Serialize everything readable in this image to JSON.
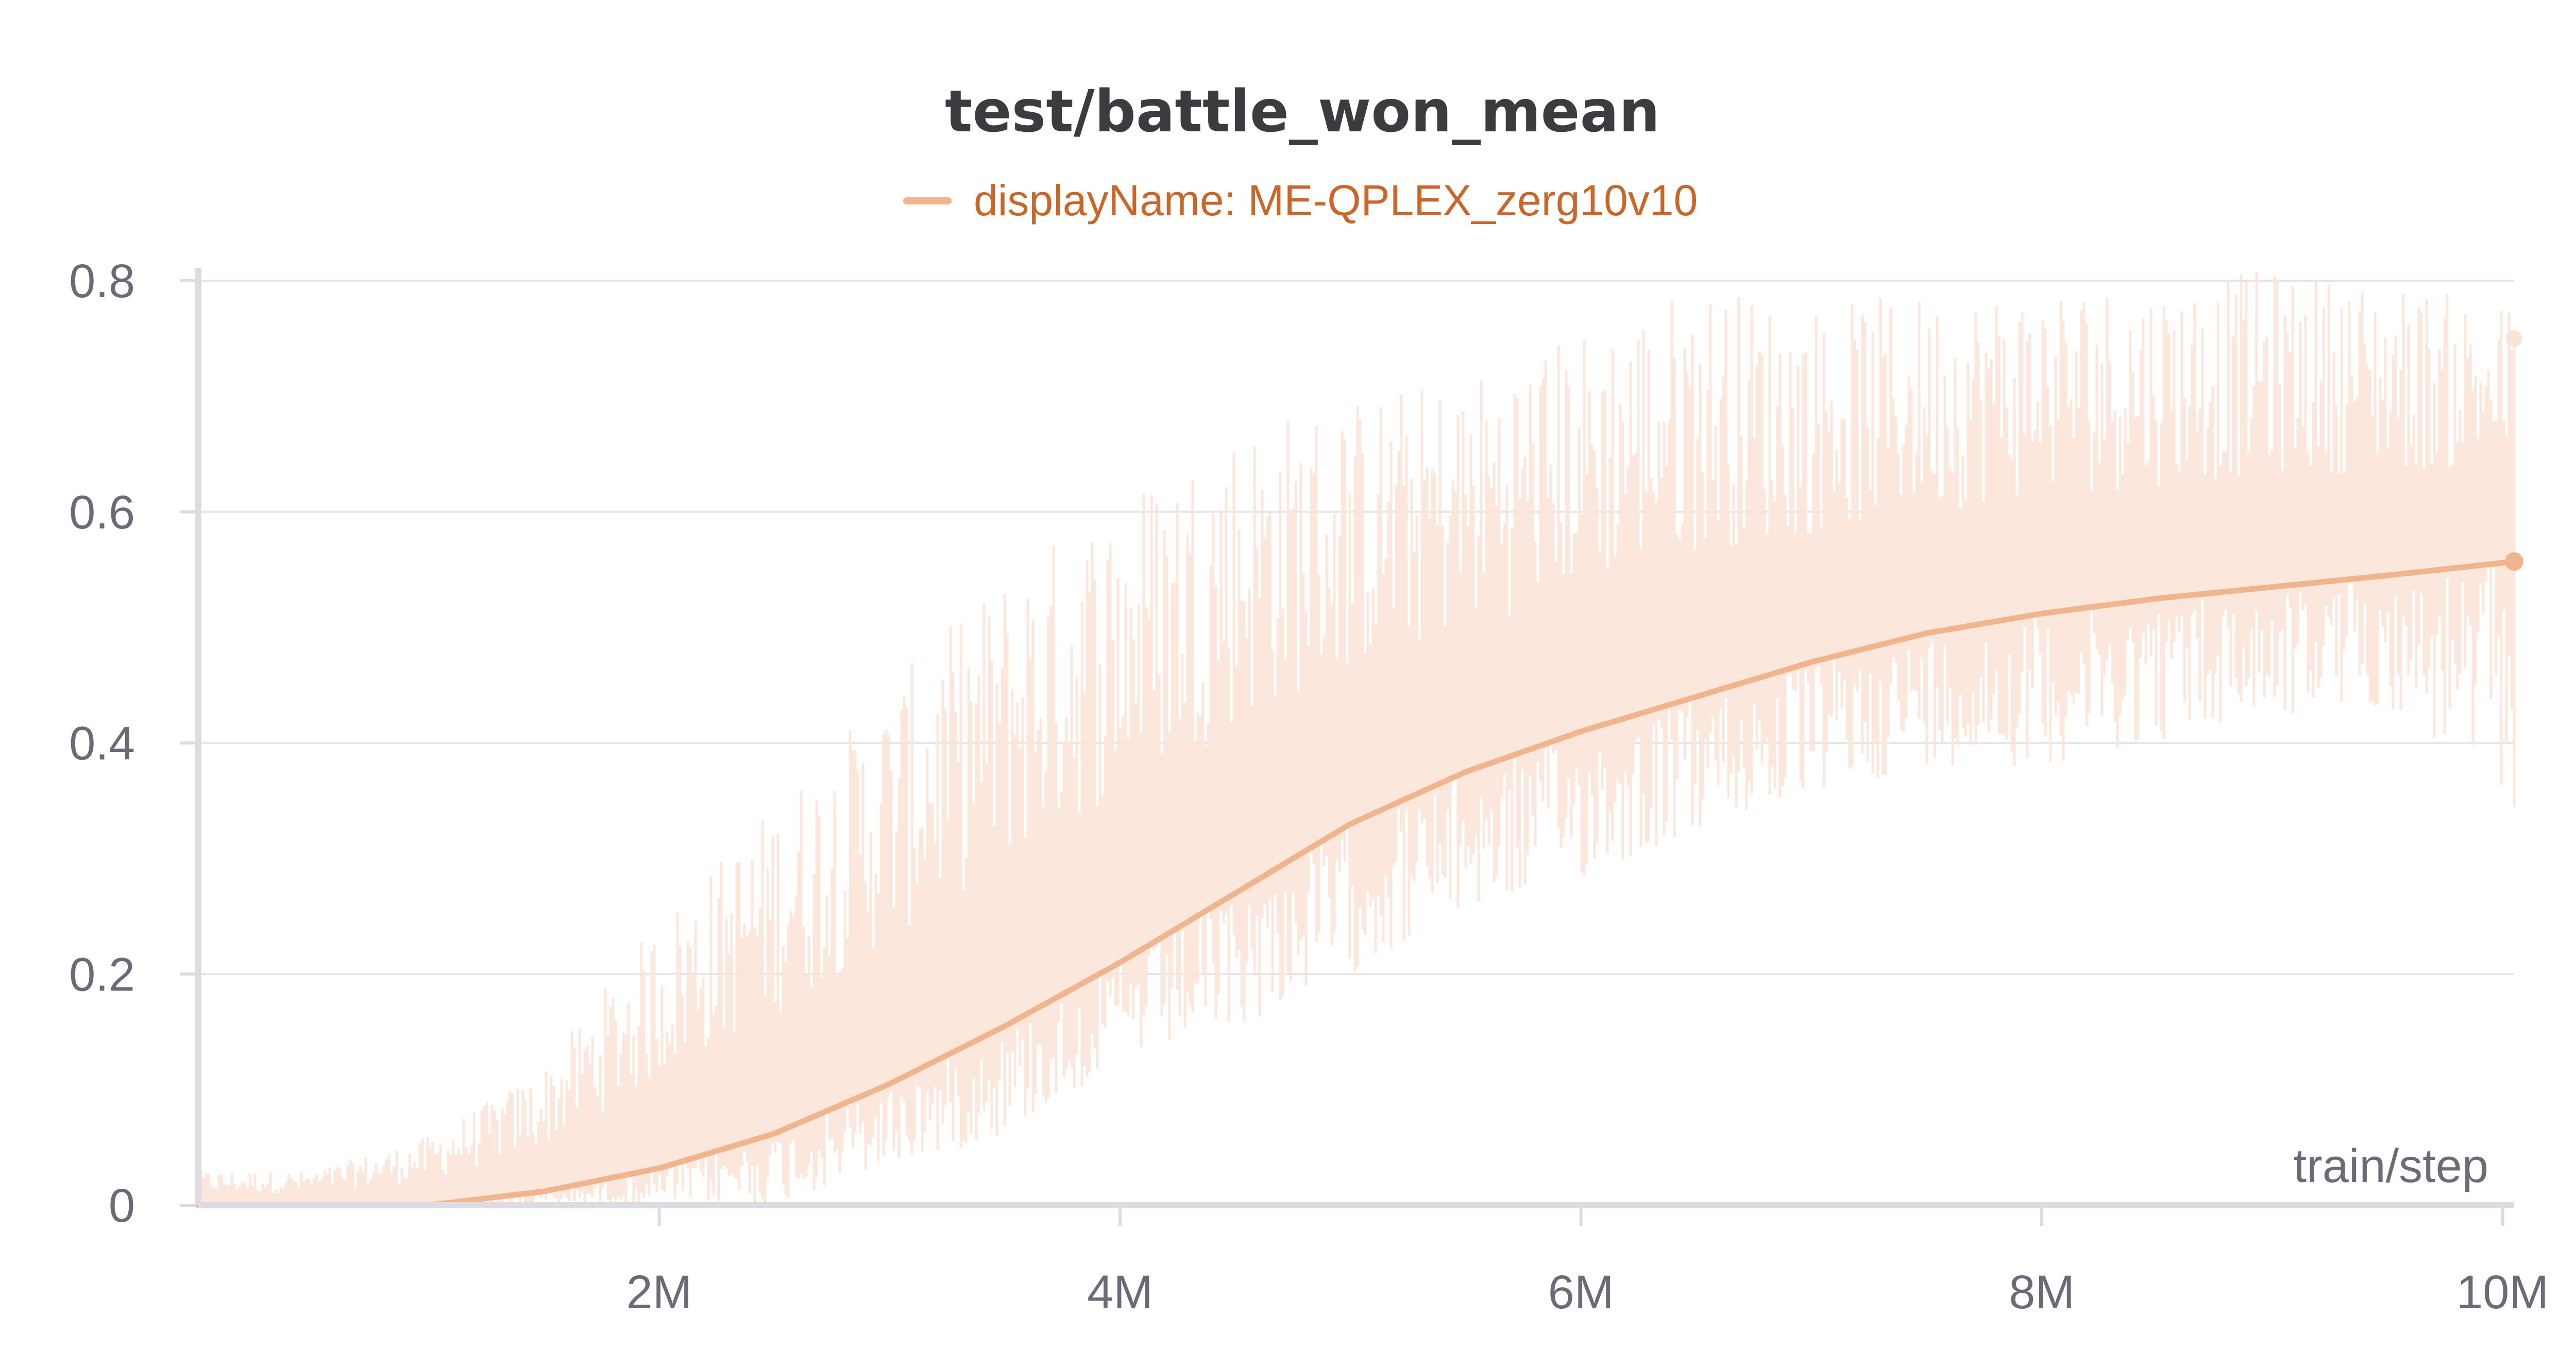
{
  "chart_data": {
    "type": "line",
    "title": "test/battle_won_mean",
    "xlabel": "train/step",
    "ylabel": "",
    "xlim": [
      0,
      10050000
    ],
    "ylim": [
      0,
      0.8
    ],
    "x_ticks": [
      {
        "value": 2000000,
        "label": "2M"
      },
      {
        "value": 4000000,
        "label": "4M"
      },
      {
        "value": 6000000,
        "label": "6M"
      },
      {
        "value": 8000000,
        "label": "8M"
      },
      {
        "value": 10000000,
        "label": "10M"
      }
    ],
    "y_ticks": [
      {
        "value": 0,
        "label": "0"
      },
      {
        "value": 0.2,
        "label": "0.2"
      },
      {
        "value": 0.4,
        "label": "0.4"
      },
      {
        "value": 0.6,
        "label": "0.6"
      },
      {
        "value": 0.8,
        "label": "0.8"
      }
    ],
    "grid": true,
    "legend": {
      "position": "top-center",
      "entries": [
        "displayName: ME-QPLEX_zerg10v10"
      ]
    },
    "series": [
      {
        "name": "displayName: ME-QPLEX_zerg10v10",
        "color": "#f0b48f",
        "raw_color": "#fbe3d6",
        "smoothed": {
          "x": [
            0,
            500000,
            1000000,
            1500000,
            2000000,
            2500000,
            3000000,
            3500000,
            4000000,
            4500000,
            5000000,
            5500000,
            6000000,
            6500000,
            7000000,
            7500000,
            8000000,
            8500000,
            9000000,
            9500000,
            10050000
          ],
          "y": [
            0,
            0,
            0.0,
            0.012,
            0.032,
            0.062,
            0.105,
            0.155,
            0.21,
            0.27,
            0.33,
            0.375,
            0.41,
            0.44,
            0.47,
            0.495,
            0.512,
            0.525,
            0.535,
            0.545,
            0.557
          ]
        },
        "raw_envelope": {
          "x": [
            0,
            500000,
            1000000,
            1500000,
            2000000,
            2500000,
            3000000,
            3500000,
            4000000,
            4500000,
            5000000,
            5500000,
            6000000,
            6500000,
            7000000,
            7500000,
            8000000,
            8500000,
            9000000,
            9500000,
            10050000
          ],
          "low": [
            0,
            0,
            0,
            0,
            0,
            0,
            0.03,
            0.06,
            0.12,
            0.15,
            0.2,
            0.25,
            0.28,
            0.32,
            0.35,
            0.38,
            0.38,
            0.4,
            0.42,
            0.43,
            0.34
          ],
          "high": [
            0.03,
            0.03,
            0.06,
            0.12,
            0.25,
            0.35,
            0.45,
            0.55,
            0.62,
            0.68,
            0.7,
            0.72,
            0.76,
            0.8,
            0.78,
            0.79,
            0.8,
            0.8,
            0.81,
            0.8,
            0.78
          ]
        },
        "last_point": {
          "x": 10050000,
          "y": 0.557
        },
        "last_raw_point": {
          "x": 10050000,
          "y": 0.75
        }
      }
    ]
  }
}
